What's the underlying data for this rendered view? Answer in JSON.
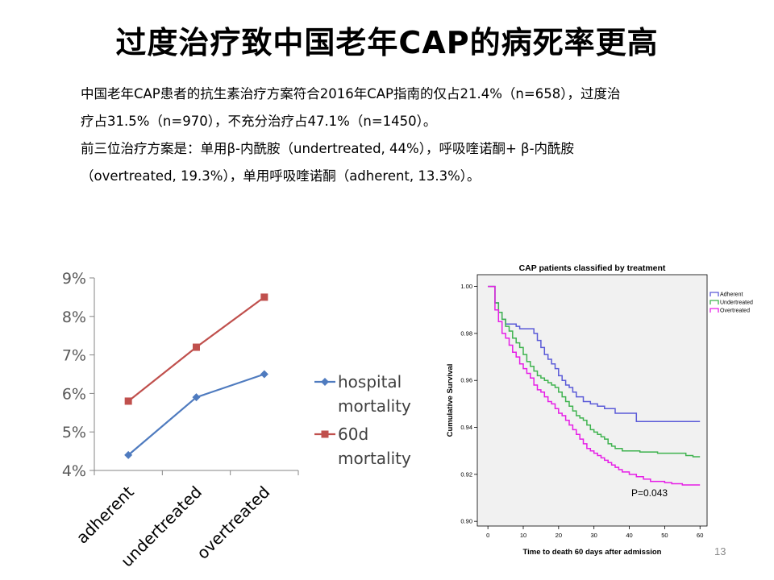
{
  "slide": {
    "title": "过度治疗致中国老年CAP的病死率更高",
    "paragraphs": [
      "中国老年CAP患者的抗生素治疗方案符合2016年CAP指南的仅占21.4%（n=658），过度治",
      "疗占31.5%（n=970），不充分治疗占47.1%（n=1450）。",
      "前三位治疗方案是：单用β-内酰胺（undertreated, 44%），呼吸喹诺酮+ β-内酰胺",
      "（overtreated, 19.3%），单用呼吸喹诺酮（adherent, 13.3%）。"
    ],
    "page_number": "13"
  },
  "chart_data": [
    {
      "type": "line",
      "categories": [
        "adherent",
        "undertreated",
        "overtreated"
      ],
      "series": [
        {
          "name": "hospital mortality",
          "legend_lines": [
            "hospital",
            "mortality"
          ],
          "values": [
            4.4,
            5.9,
            6.5
          ],
          "color": "#4f7bbf",
          "marker": "diamond"
        },
        {
          "name": "60d mortality",
          "legend_lines": [
            "60d",
            "mortality"
          ],
          "values": [
            5.8,
            7.2,
            8.5
          ],
          "color": "#c0504d",
          "marker": "square"
        }
      ],
      "ylim": [
        4,
        9
      ],
      "yticks": [
        4,
        5,
        6,
        7,
        8,
        9
      ],
      "ytick_labels": [
        "4%",
        "5%",
        "6%",
        "7%",
        "8%",
        "9%"
      ],
      "legend_position": "right",
      "grid": false
    },
    {
      "type": "line",
      "subtype": "kaplan-meier-step",
      "title": "CAP patients classified by treatment",
      "xlabel": "Time to death 60 days after admission",
      "ylabel": "Cumulative Survival",
      "xlim": [
        -3,
        62
      ],
      "ylim": [
        0.898,
        1.005
      ],
      "xticks": [
        0,
        10,
        20,
        30,
        40,
        50,
        60
      ],
      "yticks": [
        0.9,
        0.92,
        0.94,
        0.96,
        0.98,
        1.0
      ],
      "ytick_labels": [
        "0.90",
        "0.92",
        "0.94",
        "0.96",
        "0.98",
        "1.00"
      ],
      "annotation": "P=0.043",
      "legend_position": "right",
      "series": [
        {
          "name": "Adherent",
          "color": "#5a5ad8",
          "x": [
            0,
            2,
            3,
            4,
            5,
            7,
            8,
            9,
            12,
            13,
            14,
            15,
            16,
            17,
            18,
            19,
            20,
            21,
            22,
            23,
            24,
            25,
            26,
            27,
            29,
            31,
            33,
            36,
            42,
            60
          ],
          "y": [
            1.0,
            0.993,
            0.989,
            0.986,
            0.984,
            0.984,
            0.983,
            0.982,
            0.982,
            0.98,
            0.977,
            0.974,
            0.971,
            0.969,
            0.967,
            0.965,
            0.962,
            0.96,
            0.958,
            0.957,
            0.955,
            0.953,
            0.953,
            0.951,
            0.95,
            0.949,
            0.948,
            0.946,
            0.9425,
            0.9425
          ]
        },
        {
          "name": "Undertreated",
          "color": "#3fb34f",
          "x": [
            0,
            2,
            3,
            4,
            5,
            6,
            7,
            8,
            9,
            10,
            11,
            12,
            13,
            14,
            15,
            16,
            17,
            18,
            19,
            20,
            21,
            22,
            23,
            24,
            25,
            26,
            27,
            28,
            29,
            30,
            31,
            32,
            33,
            34,
            35,
            36,
            38,
            40,
            43,
            48,
            53,
            56,
            58,
            60
          ],
          "y": [
            1.0,
            0.993,
            0.989,
            0.986,
            0.983,
            0.981,
            0.978,
            0.976,
            0.974,
            0.971,
            0.968,
            0.966,
            0.964,
            0.962,
            0.961,
            0.96,
            0.959,
            0.958,
            0.957,
            0.955,
            0.953,
            0.951,
            0.949,
            0.947,
            0.945,
            0.944,
            0.943,
            0.941,
            0.939,
            0.938,
            0.937,
            0.936,
            0.935,
            0.933,
            0.932,
            0.931,
            0.93,
            0.93,
            0.9295,
            0.929,
            0.929,
            0.928,
            0.9275,
            0.9275
          ]
        },
        {
          "name": "Overtreated",
          "color": "#e61ee6",
          "x": [
            0,
            2,
            3,
            4,
            5,
            6,
            7,
            8,
            9,
            10,
            11,
            12,
            13,
            14,
            15,
            16,
            17,
            18,
            19,
            20,
            21,
            22,
            23,
            24,
            25,
            26,
            27,
            28,
            29,
            30,
            31,
            32,
            33,
            34,
            35,
            36,
            37,
            38,
            40,
            42,
            44,
            46,
            48,
            50,
            52,
            55,
            60
          ],
          "y": [
            1.0,
            0.99,
            0.985,
            0.98,
            0.978,
            0.975,
            0.972,
            0.97,
            0.967,
            0.965,
            0.963,
            0.961,
            0.958,
            0.956,
            0.955,
            0.953,
            0.951,
            0.95,
            0.948,
            0.946,
            0.945,
            0.943,
            0.941,
            0.939,
            0.937,
            0.935,
            0.933,
            0.931,
            0.93,
            0.929,
            0.928,
            0.927,
            0.926,
            0.925,
            0.924,
            0.923,
            0.922,
            0.921,
            0.92,
            0.919,
            0.918,
            0.917,
            0.917,
            0.9165,
            0.916,
            0.9155,
            0.9155
          ]
        }
      ]
    }
  ]
}
